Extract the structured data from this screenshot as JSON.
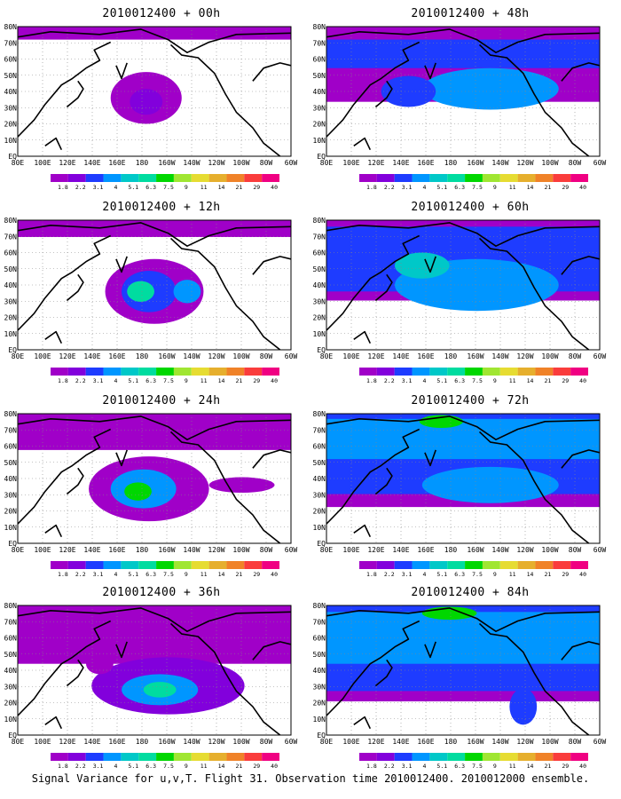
{
  "panels": [
    {
      "title": "2010012400 + 00h"
    },
    {
      "title": "2010012400 + 12h"
    },
    {
      "title": "2010012400 + 24h"
    },
    {
      "title": "2010012400 + 36h"
    },
    {
      "title": "2010012400 + 48h"
    },
    {
      "title": "2010012400 + 60h"
    },
    {
      "title": "2010012400 + 72h"
    },
    {
      "title": "2010012400 + 84h"
    }
  ],
  "lat_labels": [
    "80N",
    "70N",
    "60N",
    "50N",
    "40N",
    "30N",
    "20N",
    "10N",
    "EQ"
  ],
  "lon_labels": [
    "80E",
    "100E",
    "120E",
    "140E",
    "160E",
    "180",
    "160W",
    "140W",
    "120W",
    "100W",
    "80W",
    "60W"
  ],
  "colorbar": {
    "labels": [
      "1.8",
      "2.2",
      "3.1",
      "4",
      "5.1",
      "6.3",
      "7.5",
      "9",
      "11",
      "14",
      "21",
      "29",
      "40"
    ],
    "colors": [
      "#a000c8",
      "#8200dc",
      "#1e3cff",
      "#0096ff",
      "#00c8c8",
      "#00dca0",
      "#00d700",
      "#a0e632",
      "#e6dc32",
      "#e6af2d",
      "#f08228",
      "#fa3c3c",
      "#f00082"
    ]
  },
  "footer": "Signal Variance for u,v,T. Flight 31. Observation time 2010012400. 2010012000 ensemble."
}
